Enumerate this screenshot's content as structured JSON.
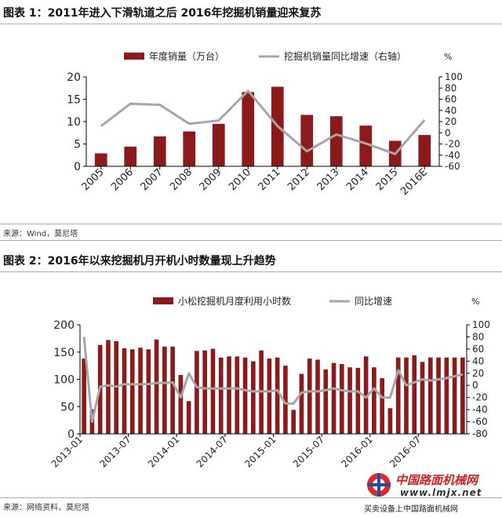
{
  "figure1": {
    "title": "图表 1：2011年进入下滑轨道之后 2016年挖掘机销量迎来复苏",
    "source": "来源：Wind，莫尼塔"
  },
  "figure2": {
    "title": "图表 2：2016年以来挖掘机月开机小时数量现上升趋势",
    "source": "来源：网络资料，莫尼塔"
  },
  "watermark": {
    "name": "中国路面机械网",
    "url": "www.lmjx.net",
    "tagline": "买卖设备上中国路面机械网"
  },
  "colors": {
    "bar": "#8b1a1a",
    "line": "#a6a6a6",
    "axis": "#000000"
  },
  "chart_data": [
    {
      "type": "bar",
      "legend": [
        "年度销量（万台）",
        "挖掘机销量同比增速（右轴）"
      ],
      "y2unit": "%",
      "categories": [
        "2005",
        "2006",
        "2007",
        "2008",
        "2009",
        "2010",
        "2011",
        "2012",
        "2013",
        "2014",
        "2015",
        "2016E"
      ],
      "series": [
        {
          "name": "年度销量（万台）",
          "axis": "left",
          "kind": "bar",
          "values": [
            2.9,
            4.4,
            6.7,
            7.8,
            9.5,
            16.6,
            17.8,
            11.5,
            11.2,
            9.1,
            5.7,
            7.0
          ]
        },
        {
          "name": "挖掘机销量同比增速（右轴）",
          "axis": "right",
          "kind": "line",
          "values": [
            12,
            52,
            50,
            16,
            22,
            75,
            12,
            -33,
            -3,
            -19,
            -38,
            23
          ]
        }
      ],
      "ylim": [
        0,
        20
      ],
      "yticks": [
        0,
        5,
        10,
        15,
        20
      ],
      "y2lim": [
        -60,
        100
      ],
      "y2ticks": [
        -60,
        -40,
        -20,
        0,
        20,
        40,
        60,
        80,
        100
      ]
    },
    {
      "type": "bar",
      "legend": [
        "小松挖掘机月度利用小时数",
        "同比增速"
      ],
      "y2unit": "%",
      "xtick_labels": [
        "2013-01",
        "2013-07",
        "2014-01",
        "2014-07",
        "2015-01",
        "2015-07",
        "2016-01",
        "2016-07"
      ],
      "xtick_index": [
        0,
        6,
        12,
        18,
        24,
        30,
        36,
        42
      ],
      "series": [
        {
          "name": "小松挖掘机月度利用小时数",
          "axis": "left",
          "kind": "bar",
          "values": [
            138,
            45,
            163,
            172,
            170,
            157,
            155,
            158,
            155,
            173,
            160,
            160,
            108,
            60,
            152,
            153,
            156,
            140,
            142,
            142,
            140,
            133,
            153,
            138,
            140,
            125,
            44,
            110,
            138,
            136,
            118,
            130,
            128,
            122,
            121,
            142,
            122,
            102,
            47,
            140,
            140,
            144,
            132,
            140,
            140,
            140,
            140,
            140
          ]
        },
        {
          "name": "同比增速",
          "axis": "right",
          "kind": "line",
          "values": [
            80,
            -60,
            -2,
            0,
            -2,
            2,
            2,
            2,
            2,
            4,
            4,
            5,
            -20,
            20,
            -3,
            -5,
            -5,
            -5,
            -5,
            -5,
            -8,
            -10,
            -10,
            -10,
            -8,
            -30,
            -30,
            -12,
            -10,
            -10,
            -8,
            -5,
            -8,
            -10,
            -10,
            -20,
            -5,
            -20,
            -20,
            25,
            0,
            5,
            10,
            8,
            10,
            12,
            15,
            18
          ]
        }
      ],
      "ylim": [
        0,
        200
      ],
      "yticks": [
        0,
        50,
        100,
        150,
        200
      ],
      "y2lim": [
        -80,
        100
      ],
      "y2ticks": [
        -80,
        -60,
        -40,
        -20,
        0,
        20,
        40,
        60,
        80,
        100
      ]
    }
  ]
}
